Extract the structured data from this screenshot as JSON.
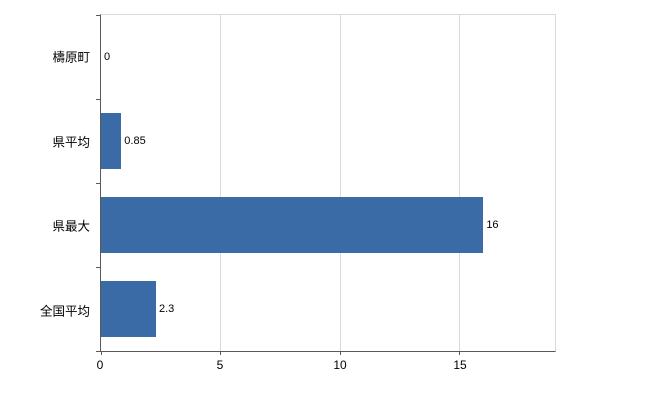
{
  "chart_data": {
    "type": "bar",
    "orientation": "horizontal",
    "title": "",
    "xlabel": "",
    "ylabel": "",
    "categories": [
      "檮原町",
      "県平均",
      "県最大",
      "全国平均"
    ],
    "values": [
      0,
      0.85,
      16,
      2.3
    ],
    "data_labels": [
      "0",
      "0.85",
      "16",
      "2.3"
    ],
    "xlim": [
      0,
      19
    ],
    "xticks": [
      0,
      5,
      10,
      15
    ],
    "grid": true,
    "legend": false,
    "bar_color": "#3A6BA6",
    "gridline_color": "#D9D9D9",
    "axis_color": "#595959",
    "text_color": "#000000"
  }
}
